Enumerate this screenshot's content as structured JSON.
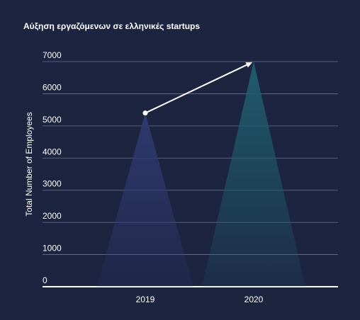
{
  "chart_data": {
    "type": "spike",
    "title": "Αύξηση εργαζόμενων σε ελληνικές startups",
    "y_label": "Total Number of Employees",
    "categories": [
      "2019",
      "2020"
    ],
    "values": [
      5400,
      7000
    ],
    "colors": [
      "#2e3a70",
      "#1f5c6c"
    ],
    "ylim": [
      0,
      7000
    ],
    "yticks": [
      0,
      1000,
      2000,
      3000,
      4000,
      5000,
      6000,
      7000
    ],
    "grid": true
  }
}
